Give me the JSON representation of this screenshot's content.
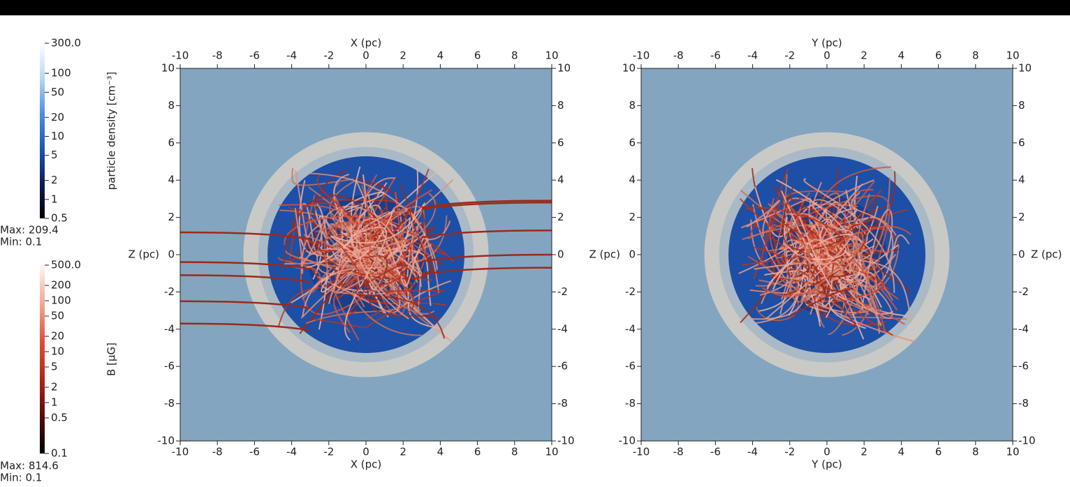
{
  "colorbars": [
    {
      "title": "particle density [cm⁻³]",
      "log_scale": true,
      "range": [
        0.5,
        300
      ],
      "ticks": [
        {
          "value": 300,
          "label": "300.0"
        },
        100,
        50,
        20,
        10,
        5,
        2,
        1,
        0.5
      ],
      "colors": [
        "#000000",
        "#0d1f5c",
        "#1f55b8",
        "#4d8ee6",
        "#b8d7f5",
        "#ffffff"
      ],
      "max_label": "Max: 209.4",
      "min_label": "Min: 0.1"
    },
    {
      "title": "B [μG]",
      "log_scale": true,
      "range": [
        0.1,
        500
      ],
      "ticks": [
        {
          "value": 500,
          "label": "500.0"
        },
        200,
        100,
        50,
        20,
        10,
        5,
        2,
        1,
        0.5,
        0.1
      ],
      "colors": [
        "#000000",
        "#5a0b08",
        "#b2261c",
        "#e0523c",
        "#f2a894",
        "#fff6f2"
      ],
      "max_label": "Max: 814.6",
      "min_label": "Min: 0.1"
    }
  ],
  "panels": [
    {
      "x_label": "X (pc)",
      "y_label": "Z (pc)",
      "xlim": [
        -10,
        10
      ],
      "ylim": [
        -10,
        10
      ],
      "xticks": [
        -10,
        -8,
        -6,
        -4,
        -2,
        0,
        2,
        4,
        6,
        8,
        10
      ],
      "yticks": [
        -10,
        -8,
        -6,
        -4,
        -2,
        0,
        2,
        4,
        6,
        8,
        10
      ]
    },
    {
      "x_label": "Y (pc)",
      "y_label": "Z (pc)",
      "xlim": [
        -10,
        10
      ],
      "ylim": [
        -10,
        10
      ],
      "xticks": [
        -10,
        -8,
        -6,
        -4,
        -2,
        0,
        2,
        4,
        6,
        8,
        10
      ],
      "yticks": [
        -10,
        -8,
        -6,
        -4,
        -2,
        0,
        2,
        4,
        6,
        8,
        10
      ]
    }
  ]
}
